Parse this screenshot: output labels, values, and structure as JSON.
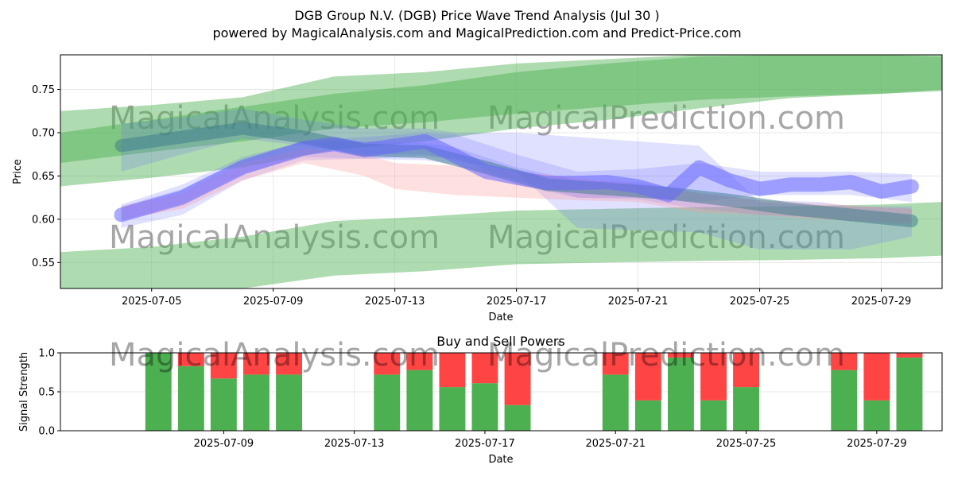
{
  "title_line1": "DGB Group N.V. (DGB) Price Wave Trend Analysis (Jul 30 )",
  "title_line2": "powered by MagicalAnalysis.com and MagicalPrediction.com and Predict-Price.com",
  "watermarks": [
    "MagicalAnalysis.com",
    "MagicalPrediction.com",
    "MagicalAnalysis.com",
    "MagicalPrediction.com",
    "MagicalAnalysis.com",
    "MagicalPrediction.com"
  ],
  "colors": {
    "green": "#4caf50",
    "red": "#ff4444",
    "blue": "#6666ff",
    "pink": "#ff9999"
  },
  "chart_data": [
    {
      "type": "area",
      "title": "",
      "xlabel": "Date",
      "ylabel": "Price",
      "x_ticks": [
        "2025-07-05",
        "2025-07-09",
        "2025-07-13",
        "2025-07-17",
        "2025-07-21",
        "2025-07-25",
        "2025-07-29"
      ],
      "y_ticks": [
        "0.55",
        "0.60",
        "0.65",
        "0.70",
        "0.75"
      ],
      "xlim": [
        "2025-07-02",
        "2025-07-31"
      ],
      "ylim": [
        0.52,
        0.79
      ],
      "grid": true,
      "green_bands": [
        {
          "name": "",
          "x": [
            "2025-07-02",
            "2025-07-05",
            "2025-07-08",
            "2025-07-11",
            "2025-07-14",
            "2025-07-17",
            "2025-07-20",
            "2025-07-23",
            "2025-07-26",
            "2025-07-29",
            "2025-07-31"
          ],
          "upper": [
            0.725,
            0.732,
            0.741,
            0.765,
            0.77,
            0.78,
            0.785,
            0.79,
            0.79,
            0.79,
            0.79
          ],
          "lower": [
            0.638,
            0.648,
            0.66,
            0.68,
            0.69,
            0.705,
            0.715,
            0.728,
            0.74,
            0.745,
            0.75
          ]
        },
        {
          "name": "",
          "x": [
            "2025-07-02",
            "2025-07-05",
            "2025-07-08",
            "2025-07-11",
            "2025-07-14",
            "2025-07-17",
            "2025-07-20",
            "2025-07-23",
            "2025-07-26",
            "2025-07-29",
            "2025-07-31"
          ],
          "upper": [
            0.7,
            0.715,
            0.73,
            0.745,
            0.755,
            0.77,
            0.78,
            0.788,
            0.79,
            0.79,
            0.788
          ],
          "lower": [
            0.665,
            0.678,
            0.69,
            0.705,
            0.712,
            0.722,
            0.73,
            0.738,
            0.742,
            0.745,
            0.748
          ]
        },
        {
          "name": "",
          "x": [
            "2025-07-02",
            "2025-07-05",
            "2025-07-08",
            "2025-07-11",
            "2025-07-14",
            "2025-07-17",
            "2025-07-20",
            "2025-07-23",
            "2025-07-26",
            "2025-07-29",
            "2025-07-31"
          ],
          "upper": [
            0.562,
            0.568,
            0.58,
            0.598,
            0.603,
            0.61,
            0.612,
            0.614,
            0.615,
            0.617,
            0.62
          ],
          "lower": [
            0.52,
            0.52,
            0.52,
            0.535,
            0.54,
            0.548,
            0.55,
            0.552,
            0.553,
            0.555,
            0.558
          ]
        }
      ],
      "blue_bands": [
        {
          "name": "",
          "x": [
            "2025-07-04",
            "2025-07-06",
            "2025-07-08",
            "2025-07-10",
            "2025-07-12",
            "2025-07-14",
            "2025-07-15",
            "2025-07-17",
            "2025-07-19",
            "2025-07-21",
            "2025-07-23",
            "2025-07-25",
            "2025-07-27",
            "2025-07-28",
            "2025-07-30"
          ],
          "upper": [
            0.615,
            0.635,
            0.67,
            0.69,
            0.695,
            0.7,
            0.698,
            0.675,
            0.655,
            0.658,
            0.665,
            0.655,
            0.655,
            0.655,
            0.652
          ],
          "lower": [
            0.59,
            0.605,
            0.645,
            0.668,
            0.67,
            0.673,
            0.67,
            0.645,
            0.625,
            0.625,
            0.62,
            0.628,
            0.628,
            0.628,
            0.62
          ]
        },
        {
          "name": "",
          "x": [
            "2025-07-04",
            "2025-07-06",
            "2025-07-08",
            "2025-07-10",
            "2025-07-12",
            "2025-07-14",
            "2025-07-15",
            "2025-07-17",
            "2025-07-19",
            "2025-07-21",
            "2025-07-23",
            "2025-07-25",
            "2025-07-27",
            "2025-07-28",
            "2025-07-30"
          ],
          "upper": [
            0.71,
            0.718,
            0.728,
            0.715,
            0.705,
            0.705,
            0.7,
            0.7,
            0.695,
            0.69,
            0.685,
            0.62,
            0.615,
            0.615,
            0.612
          ],
          "lower": [
            0.655,
            0.675,
            0.693,
            0.685,
            0.675,
            0.675,
            0.668,
            0.655,
            0.59,
            0.587,
            0.585,
            0.565,
            0.565,
            0.565,
            0.58
          ]
        },
        {
          "name": "",
          "x": [
            "2025-07-04",
            "2025-07-06",
            "2025-07-08",
            "2025-07-10",
            "2025-07-12",
            "2025-07-14",
            "2025-07-15",
            "2025-07-17",
            "2025-07-19",
            "2025-07-21",
            "2025-07-23",
            "2025-07-25",
            "2025-07-27",
            "2025-07-28",
            "2025-07-30"
          ],
          "upper": [
            0.617,
            0.64,
            0.672,
            0.69,
            0.69,
            0.688,
            0.683,
            0.66,
            0.645,
            0.643,
            0.63,
            0.622,
            0.62,
            0.615,
            0.615
          ],
          "lower": [
            0.598,
            0.618,
            0.652,
            0.672,
            0.67,
            0.668,
            0.663,
            0.64,
            0.625,
            0.623,
            0.612,
            0.605,
            0.602,
            0.598,
            0.595
          ]
        }
      ],
      "blue_line": {
        "name": "",
        "x": [
          "2025-07-04",
          "2025-07-06",
          "2025-07-08",
          "2025-07-10",
          "2025-07-11",
          "2025-07-12",
          "2025-07-13",
          "2025-07-14",
          "2025-07-15",
          "2025-07-16",
          "2025-07-17",
          "2025-07-18",
          "2025-07-19",
          "2025-07-20",
          "2025-07-21",
          "2025-07-22",
          "2025-07-23",
          "2025-07-24",
          "2025-07-25",
          "2025-07-26",
          "2025-07-27",
          "2025-07-28",
          "2025-07-29",
          "2025-07-30"
        ],
        "values": [
          0.605,
          0.625,
          0.66,
          0.682,
          0.687,
          0.68,
          0.685,
          0.69,
          0.673,
          0.655,
          0.648,
          0.642,
          0.642,
          0.643,
          0.638,
          0.628,
          0.66,
          0.645,
          0.635,
          0.64,
          0.64,
          0.643,
          0.632,
          0.638
        ]
      },
      "teal_line": {
        "name": "",
        "x": [
          "2025-07-04",
          "2025-07-06",
          "2025-07-08",
          "2025-07-10",
          "2025-07-12",
          "2025-07-14",
          "2025-07-16",
          "2025-07-18",
          "2025-07-20",
          "2025-07-22",
          "2025-07-24",
          "2025-07-26",
          "2025-07-28",
          "2025-07-30"
        ],
        "values": [
          0.685,
          0.695,
          0.705,
          0.695,
          0.68,
          0.678,
          0.66,
          0.64,
          0.635,
          0.63,
          0.622,
          0.612,
          0.605,
          0.598
        ]
      },
      "pink_band": {
        "name": "",
        "x": [
          "2025-07-04",
          "2025-07-06",
          "2025-07-08",
          "2025-07-10",
          "2025-07-12",
          "2025-07-13",
          "2025-07-15",
          "2025-07-17",
          "2025-07-19",
          "2025-07-21",
          "2025-07-23",
          "2025-07-25",
          "2025-07-27",
          "2025-07-30"
        ],
        "upper": [
          0.615,
          0.63,
          0.665,
          0.682,
          0.675,
          0.665,
          0.662,
          0.655,
          0.648,
          0.64,
          0.63,
          0.622,
          0.618,
          0.612
        ],
        "lower": [
          0.6,
          0.612,
          0.645,
          0.665,
          0.65,
          0.635,
          0.628,
          0.625,
          0.622,
          0.62,
          0.608,
          0.605,
          0.6,
          0.595
        ]
      }
    },
    {
      "type": "bar",
      "title": "Buy and Sell Powers",
      "xlabel": "Date",
      "ylabel": "Signal Strength",
      "x_ticks": [
        "2025-07-09",
        "2025-07-13",
        "2025-07-17",
        "2025-07-21",
        "2025-07-25",
        "2025-07-29"
      ],
      "y_ticks": [
        "0.0",
        "0.5",
        "1.0"
      ],
      "xlim": [
        "2025-07-04",
        "2025-07-31"
      ],
      "ylim": [
        0,
        1
      ],
      "grid": true,
      "categories": [
        "2025-07-07",
        "2025-07-08",
        "2025-07-09",
        "2025-07-10",
        "2025-07-11",
        "2025-07-14",
        "2025-07-15",
        "2025-07-16",
        "2025-07-17",
        "2025-07-18",
        "2025-07-21",
        "2025-07-22",
        "2025-07-23",
        "2025-07-24",
        "2025-07-25",
        "2025-07-28",
        "2025-07-29",
        "2025-07-30"
      ],
      "series": [
        {
          "name": "",
          "values": [
            1.0,
            0.83,
            0.67,
            0.72,
            0.72,
            0.72,
            0.78,
            0.56,
            0.61,
            0.33,
            0.72,
            0.39,
            0.94,
            0.39,
            0.56,
            0.78,
            0.39,
            0.94
          ]
        },
        {
          "name": "",
          "values": [
            0.0,
            0.17,
            0.33,
            0.28,
            0.28,
            0.28,
            0.22,
            0.44,
            0.39,
            0.67,
            0.28,
            0.61,
            0.06,
            0.61,
            0.44,
            0.22,
            0.61,
            0.06
          ]
        }
      ]
    }
  ]
}
